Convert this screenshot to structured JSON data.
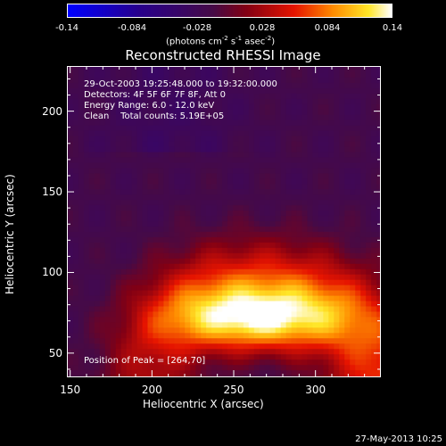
{
  "colorbar": {
    "ticks": [
      "-0.14",
      "-0.084",
      "-0.028",
      "0.028",
      "0.084",
      "0.14"
    ],
    "units_label": "(photons cm",
    "units_exp1": "-2",
    "units_mid": " s",
    "units_exp2": "-1",
    "units_mid2": " asec",
    "units_exp3": "-2",
    "units_close": ")"
  },
  "title": "Reconstructed RHESSI Image",
  "annotations": {
    "time": "29-Oct-2003 19:25:48.000 to 19:32:00.000",
    "detectors": "Detectors: 4F 5F 6F 7F 8F, Att 0",
    "energy": "Energy Range: 6.0 - 12.0 keV",
    "clean": "Clean    Total counts: 5.19E+05",
    "peak": "Position of Peak = [264,70]"
  },
  "footer": "27-May-2013 10:25",
  "chart_data": {
    "type": "heatmap",
    "title": "Reconstructed RHESSI Image",
    "xlabel": "Heliocentric X (arcsec)",
    "ylabel": "Heliocentric Y (arcsec)",
    "xlim": [
      148,
      340
    ],
    "ylim": [
      35,
      228
    ],
    "xticks": [
      150,
      200,
      250,
      300
    ],
    "yticks": [
      50,
      100,
      150,
      200
    ],
    "colorbar_range": [
      -0.14,
      0.14
    ],
    "colorbar_ticks": [
      -0.14,
      -0.084,
      -0.028,
      0.028,
      0.084,
      0.14
    ],
    "peak": [
      264,
      70
    ],
    "colormap": "blue-purple-red-yellow-white"
  }
}
